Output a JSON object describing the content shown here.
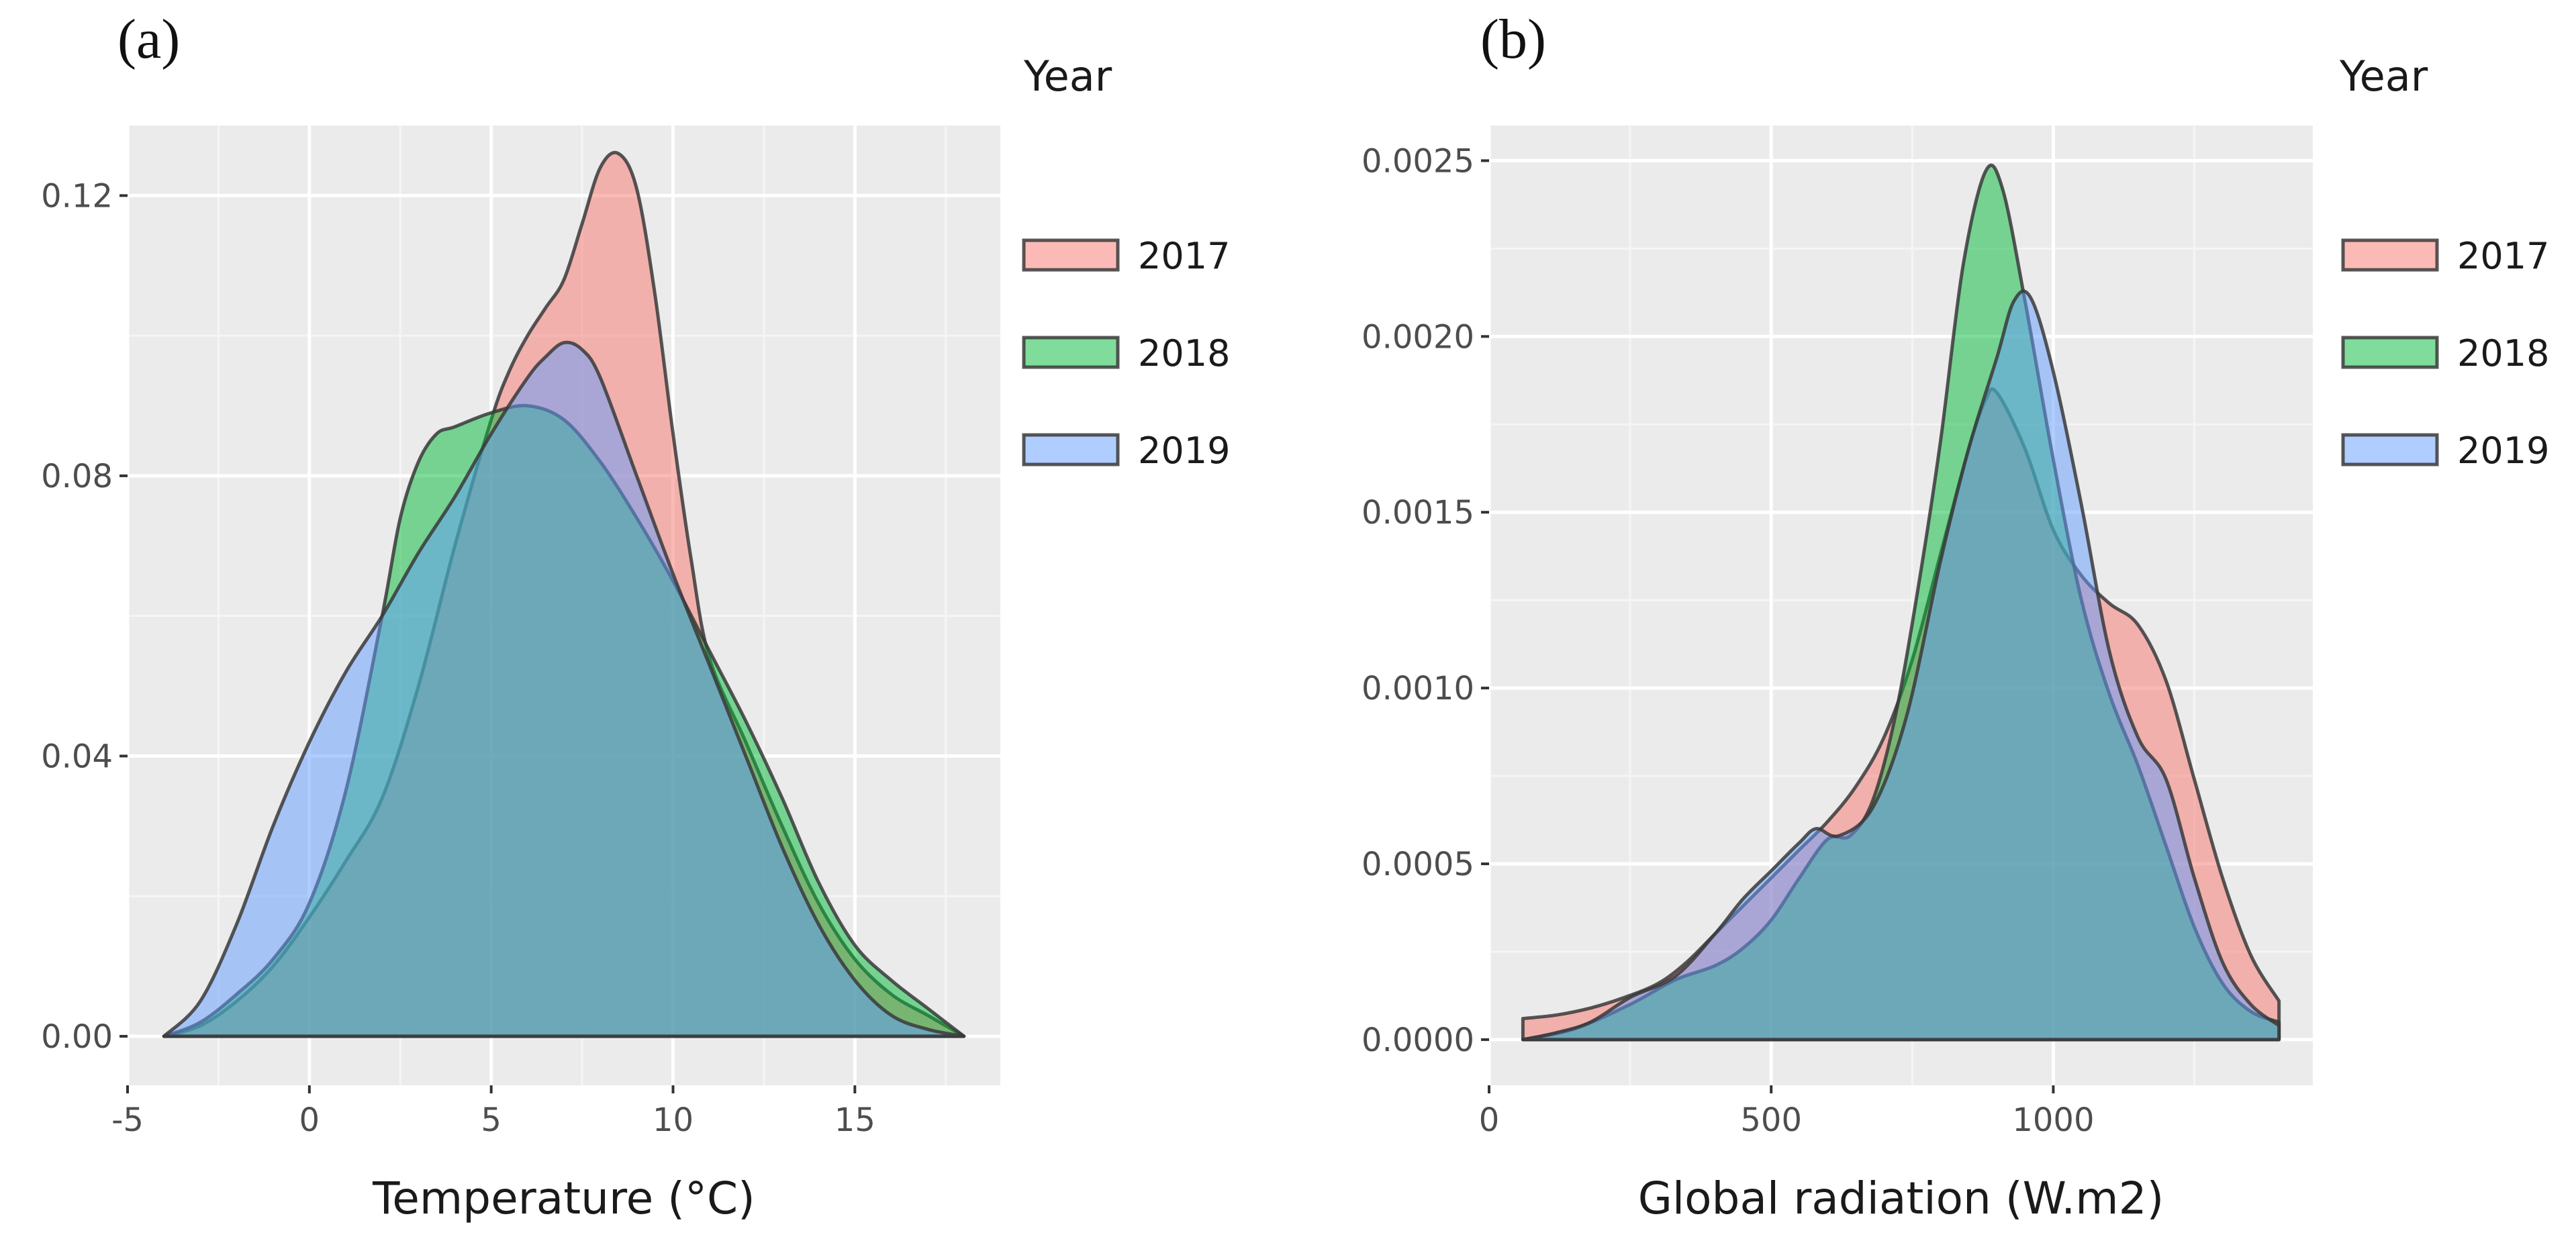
{
  "chart_data": [
    {
      "panel_label": "(a)",
      "type": "area",
      "subtype": "density",
      "title": "",
      "xlabel": "Temperature (°C)",
      "ylabel": "",
      "xlim": [
        -5,
        19
      ],
      "ylim": [
        -0.007,
        0.13
      ],
      "xticks": [
        -5,
        0,
        5,
        10,
        15
      ],
      "xtick_labels": [
        "-5",
        "0",
        "5",
        "10",
        "15"
      ],
      "yticks": [
        0.0,
        0.04,
        0.08,
        0.12
      ],
      "ytick_labels": [
        "0.00",
        "0.04",
        "0.08",
        "0.12"
      ],
      "grid": true,
      "legend": {
        "title": "Year",
        "position": "right"
      },
      "series": [
        {
          "name": "2017",
          "color": "#F8766D",
          "x": [
            -4,
            -3,
            -2,
            -1,
            0,
            1,
            2,
            3,
            4,
            5,
            5.5,
            6,
            6.5,
            7,
            7.5,
            8,
            8.5,
            9,
            9.5,
            10,
            10.5,
            11,
            12,
            13,
            14,
            15,
            16,
            17,
            18
          ],
          "y": [
            0.0,
            0.0015,
            0.005,
            0.01,
            0.017,
            0.025,
            0.034,
            0.05,
            0.07,
            0.088,
            0.095,
            0.1,
            0.104,
            0.108,
            0.116,
            0.124,
            0.126,
            0.121,
            0.106,
            0.086,
            0.068,
            0.054,
            0.042,
            0.03,
            0.019,
            0.011,
            0.006,
            0.003,
            0.0
          ]
        },
        {
          "name": "2018",
          "color": "#00BA38",
          "x": [
            -4,
            -3,
            -2,
            -1,
            0,
            1,
            2,
            2.5,
            3,
            3.5,
            4,
            5,
            6,
            7,
            8,
            9,
            10,
            11,
            12,
            13,
            14,
            15,
            16,
            17,
            18
          ],
          "y": [
            0.0,
            0.002,
            0.006,
            0.011,
            0.019,
            0.035,
            0.06,
            0.074,
            0.082,
            0.086,
            0.087,
            0.089,
            0.09,
            0.088,
            0.082,
            0.074,
            0.065,
            0.055,
            0.045,
            0.034,
            0.022,
            0.013,
            0.008,
            0.004,
            0.0
          ]
        },
        {
          "name": "2019",
          "color": "#619CFF",
          "x": [
            -4,
            -3,
            -2,
            -1,
            0,
            1,
            2,
            3,
            4,
            5,
            6,
            6.5,
            7,
            7.5,
            8,
            9,
            10,
            11,
            12,
            13,
            14,
            15,
            16,
            17,
            18
          ],
          "y": [
            0.0,
            0.005,
            0.016,
            0.03,
            0.042,
            0.052,
            0.06,
            0.069,
            0.077,
            0.086,
            0.094,
            0.097,
            0.099,
            0.098,
            0.094,
            0.08,
            0.066,
            0.053,
            0.04,
            0.027,
            0.016,
            0.008,
            0.003,
            0.001,
            0.0
          ]
        }
      ]
    },
    {
      "panel_label": "(b)",
      "type": "area",
      "subtype": "density",
      "title": "",
      "xlabel": "Global radiation (W.m2)",
      "ylabel": "",
      "xlim": [
        0,
        1460
      ],
      "ylim": [
        -0.00013,
        0.0026
      ],
      "xticks": [
        0,
        500,
        1000
      ],
      "xtick_labels": [
        "0",
        "500",
        "1000"
      ],
      "yticks": [
        0.0,
        0.0005,
        0.001,
        0.0015,
        0.002,
        0.0025
      ],
      "ytick_labels": [
        "0.0000",
        "0.0005",
        "0.0010",
        "0.0015",
        "0.0020",
        "0.0025"
      ],
      "grid": true,
      "legend": {
        "title": "Year",
        "position": "right"
      },
      "series": [
        {
          "name": "2017",
          "color": "#F8766D",
          "x": [
            60,
            120,
            180,
            240,
            300,
            350,
            400,
            450,
            500,
            550,
            600,
            650,
            700,
            750,
            800,
            850,
            880,
            900,
            950,
            1000,
            1050,
            1100,
            1150,
            1200,
            1250,
            1300,
            1350,
            1400
          ],
          "y": [
            6e-05,
            7e-05,
            9e-05,
            0.00012,
            0.00016,
            0.00022,
            0.0003,
            0.00038,
            0.00046,
            0.00054,
            0.00062,
            0.00072,
            0.00086,
            0.00108,
            0.00138,
            0.00168,
            0.00182,
            0.00184,
            0.00168,
            0.00145,
            0.00132,
            0.00124,
            0.00118,
            0.00102,
            0.00074,
            0.00046,
            0.00024,
            0.00011
          ]
        },
        {
          "name": "2018",
          "color": "#00BA38",
          "x": [
            60,
            150,
            250,
            330,
            400,
            450,
            500,
            550,
            600,
            640,
            680,
            720,
            760,
            800,
            840,
            880,
            910,
            950,
            1000,
            1050,
            1100,
            1150,
            1200,
            1250,
            1300,
            1350,
            1400
          ],
          "y": [
            0.0,
            3e-05,
            0.0001,
            0.00017,
            0.00021,
            0.00026,
            0.00034,
            0.00046,
            0.00057,
            0.00058,
            0.00068,
            0.00092,
            0.00128,
            0.0017,
            0.0022,
            0.00247,
            0.00242,
            0.0021,
            0.00165,
            0.00125,
            0.00098,
            0.00078,
            0.00055,
            0.00032,
            0.00016,
            8e-05,
            5e-05
          ]
        },
        {
          "name": "2019",
          "color": "#619CFF",
          "x": [
            60,
            120,
            180,
            250,
            330,
            400,
            450,
            500,
            550,
            580,
            620,
            680,
            740,
            800,
            850,
            900,
            930,
            960,
            1000,
            1050,
            1100,
            1150,
            1200,
            1250,
            1300,
            1350,
            1400
          ],
          "y": [
            0.0,
            2e-05,
            5e-05,
            0.00012,
            0.00018,
            0.0003,
            0.0004,
            0.00048,
            0.00056,
            0.0006,
            0.00058,
            0.00066,
            0.00092,
            0.00136,
            0.00168,
            0.00194,
            0.0021,
            0.00211,
            0.0019,
            0.00152,
            0.0011,
            0.00086,
            0.00074,
            0.00046,
            0.00022,
            0.0001,
            4e-05
          ]
        }
      ]
    }
  ]
}
